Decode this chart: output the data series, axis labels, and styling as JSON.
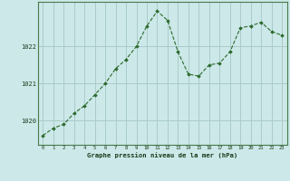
{
  "x": [
    0,
    1,
    2,
    3,
    4,
    5,
    6,
    7,
    8,
    9,
    10,
    11,
    12,
    13,
    14,
    15,
    16,
    17,
    18,
    19,
    20,
    21,
    22,
    23
  ],
  "y": [
    1019.6,
    1019.8,
    1019.9,
    1020.2,
    1020.4,
    1020.7,
    1021.0,
    1021.4,
    1021.65,
    1022.0,
    1022.55,
    1022.95,
    1022.7,
    1021.85,
    1021.25,
    1021.2,
    1021.5,
    1021.55,
    1021.85,
    1022.5,
    1022.55,
    1022.65,
    1022.4,
    1022.3
  ],
  "bg_color": "#cce8e8",
  "line_color": "#2d6a2d",
  "marker_color": "#2d6a2d",
  "grid_color": "#aacccc",
  "ylabel_values": [
    1020,
    1021,
    1022
  ],
  "xlabel_label": "Graphe pression niveau de la mer (hPa)",
  "ymin": 1019.35,
  "ymax": 1023.2,
  "xmin": -0.5,
  "xmax": 23.5
}
